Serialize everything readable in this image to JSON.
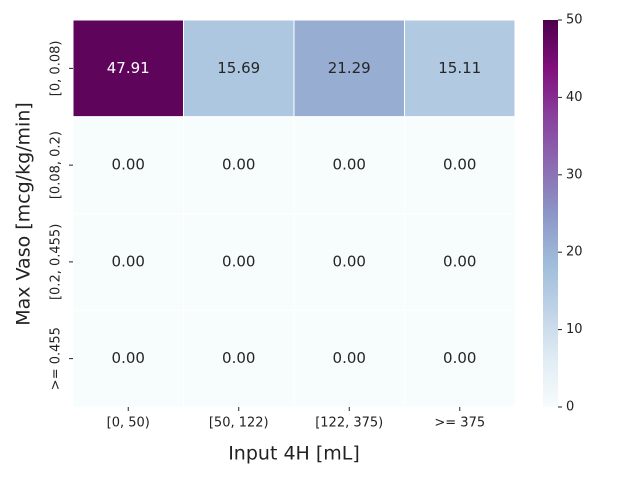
{
  "chart_data": {
    "type": "heatmap",
    "xlabel": "Input 4H [mL]",
    "ylabel": "Max Vaso [mcg/kg/min]",
    "x_categories": [
      "[0, 50)",
      "[50, 122)",
      "[122, 375)",
      ">= 375"
    ],
    "y_categories": [
      "[0, 0.08)",
      "[0.08, 0.2)",
      "[0.2, 0.455)",
      ">= 0.455"
    ],
    "values": [
      [
        47.91,
        15.69,
        21.29,
        15.11
      ],
      [
        0,
        0,
        0,
        0
      ],
      [
        0,
        0,
        0,
        0
      ],
      [
        0,
        0,
        0,
        0
      ]
    ],
    "value_labels": [
      [
        "47.91",
        "15.69",
        "21.29",
        "15.11"
      ],
      [
        "0.00",
        "0.00",
        "0.00",
        "0.00"
      ],
      [
        "0.00",
        "0.00",
        "0.00",
        "0.00"
      ],
      [
        "0.00",
        "0.00",
        "0.00",
        "0.00"
      ]
    ],
    "clim": [
      0,
      50
    ],
    "cticks": [
      0,
      10,
      20,
      30,
      40,
      50
    ],
    "colormap": [
      "#f7fcfd",
      "#e0ecf4",
      "#bfd3e6",
      "#9ebcda",
      "#8c96c6",
      "#8c6bb1",
      "#88419d",
      "#810f7c",
      "#4d004b"
    ]
  }
}
